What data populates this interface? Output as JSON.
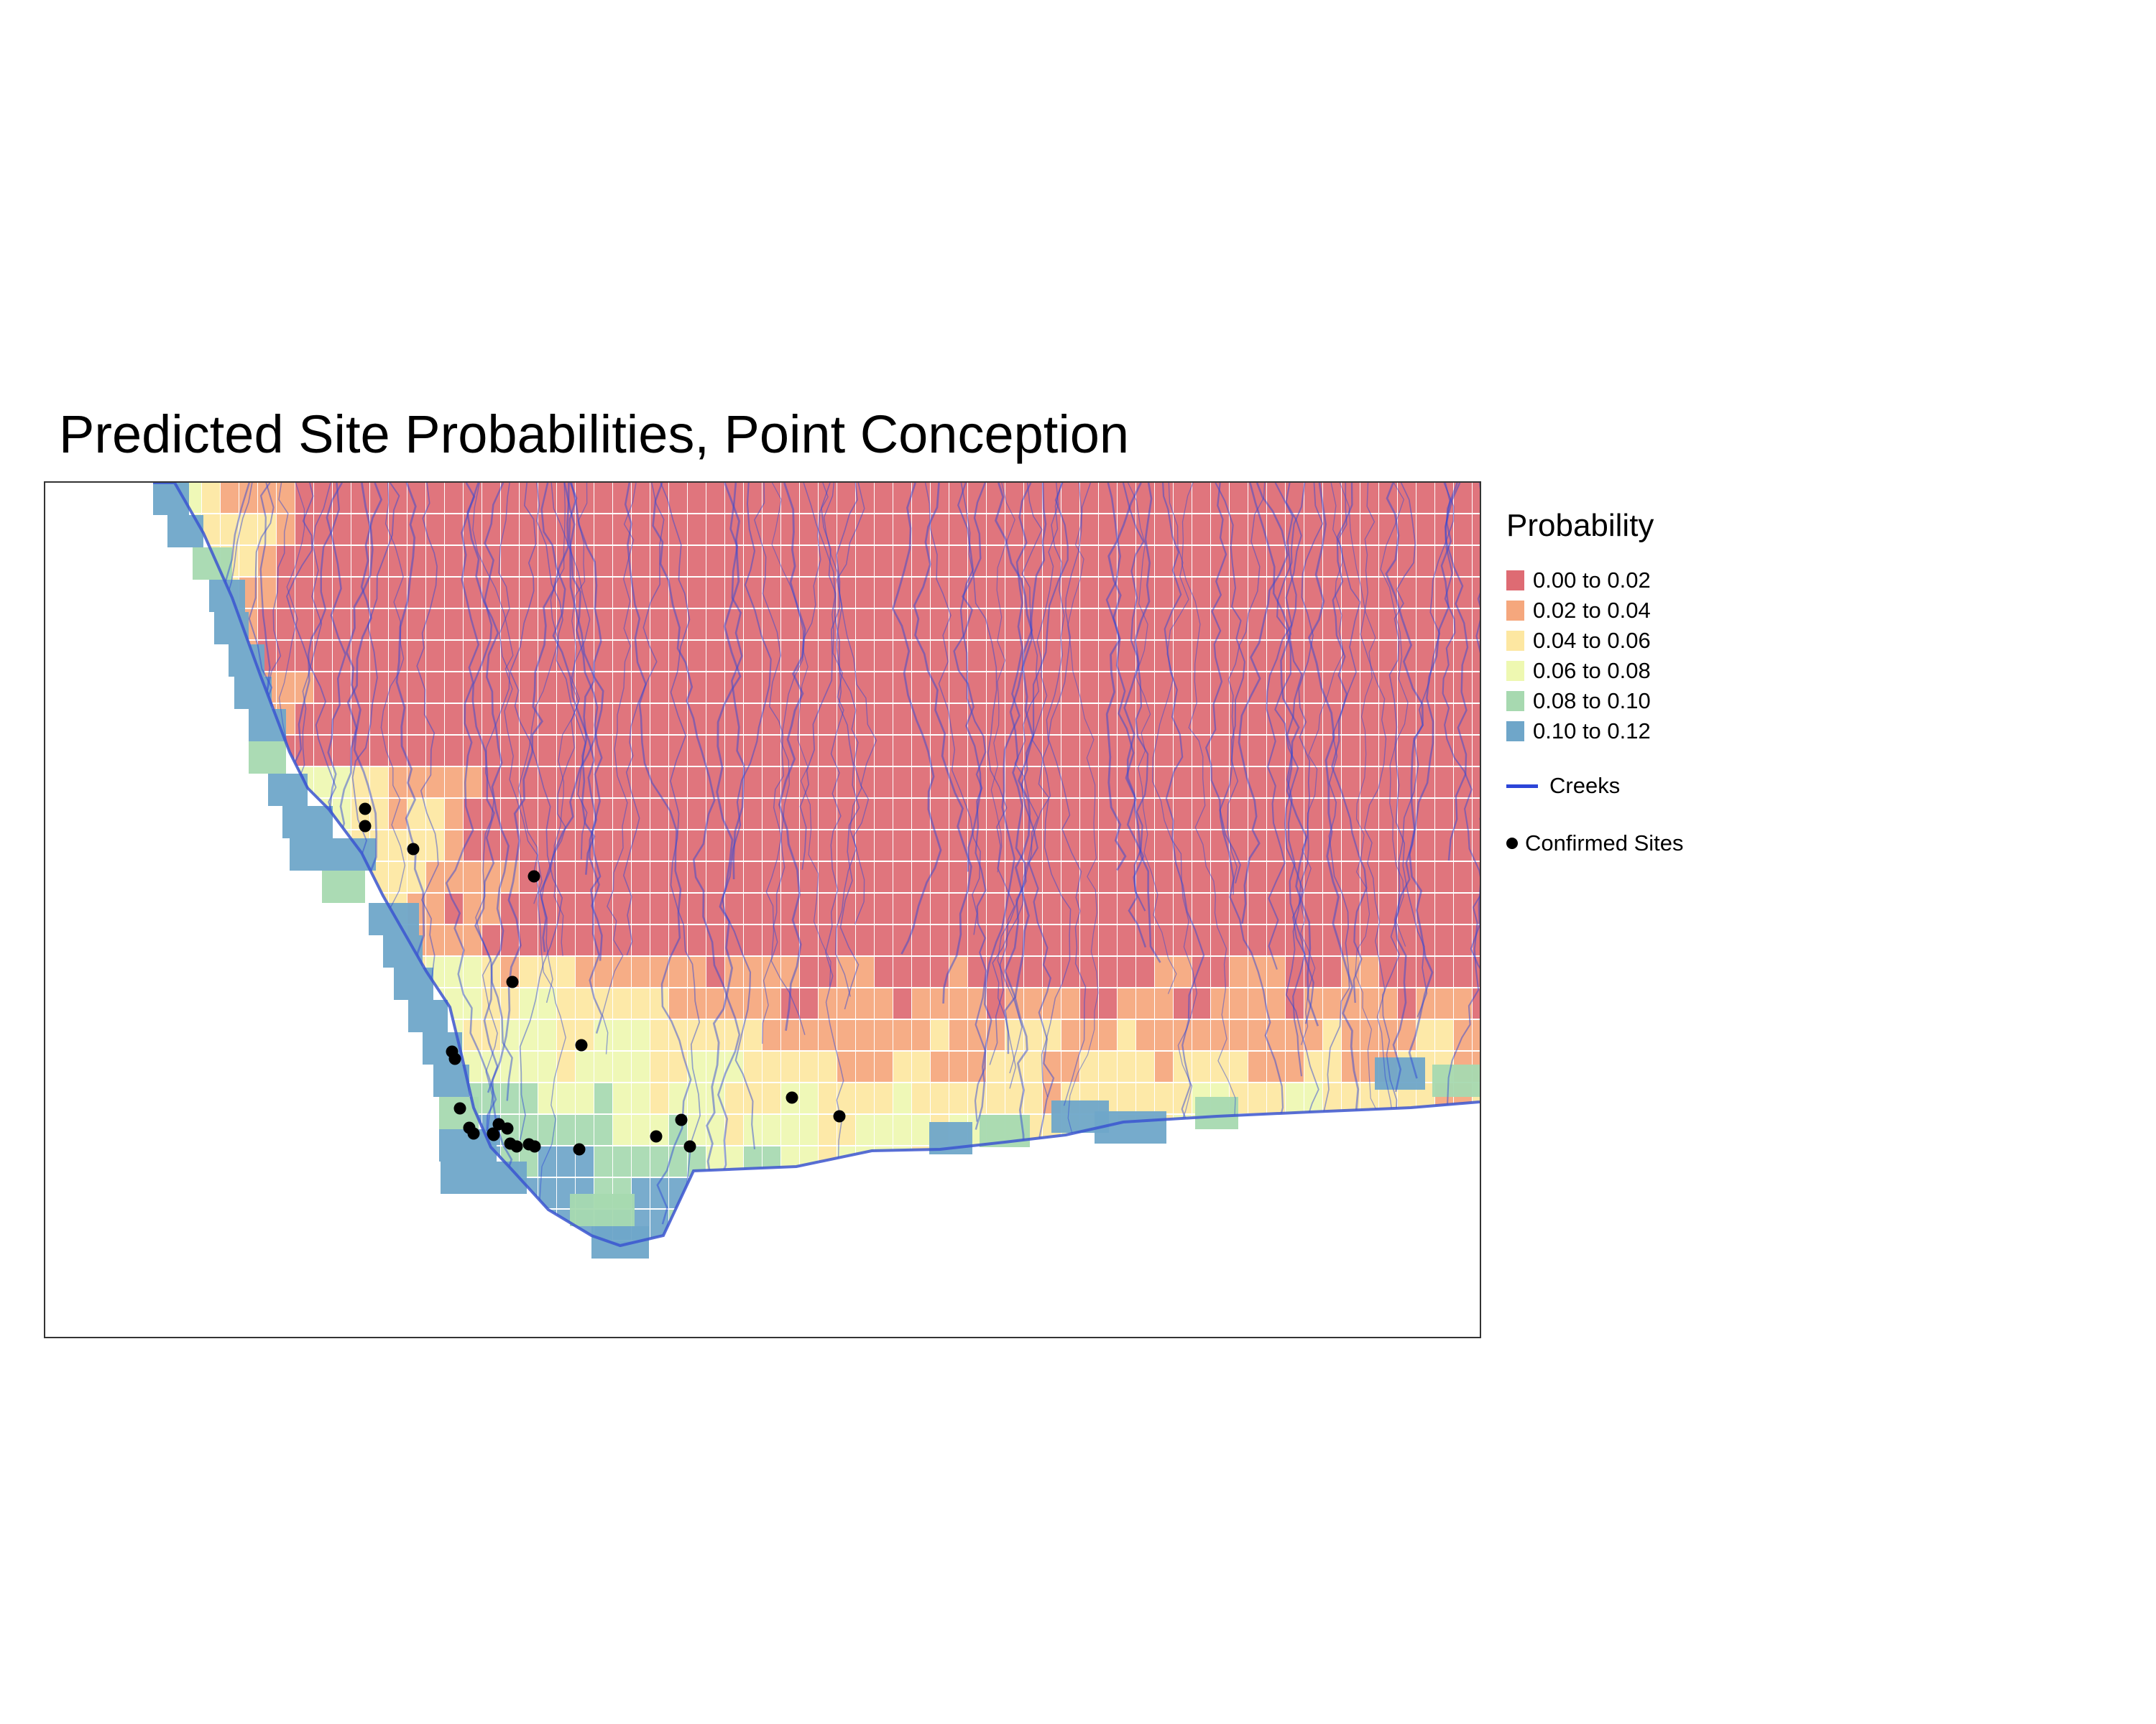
{
  "map": {
    "title": "Predicted Site Probabilities, Point Conception",
    "region": "Point Conception",
    "basemap": "probability raster with creek network",
    "colors": {
      "creeks": "#2c45d8",
      "sites": "#000000",
      "coastline": "#3b55d0",
      "frame": "#333333"
    }
  },
  "legend": {
    "title": "Probability",
    "classes": [
      {
        "label": "0.00 to 0.02",
        "color": "#de6b73"
      },
      {
        "label": "0.02 to 0.04",
        "color": "#f5a77d"
      },
      {
        "label": "0.04 to 0.06",
        "color": "#fde7a1"
      },
      {
        "label": "0.06 to 0.08",
        "color": "#eef8b1"
      },
      {
        "label": "0.08 to 0.10",
        "color": "#a7d9b0"
      },
      {
        "label": "0.10 to 0.12",
        "color": "#6fa6c9"
      }
    ],
    "creeks_label": "Creeks",
    "sites_label": "Confirmed Sites"
  }
}
